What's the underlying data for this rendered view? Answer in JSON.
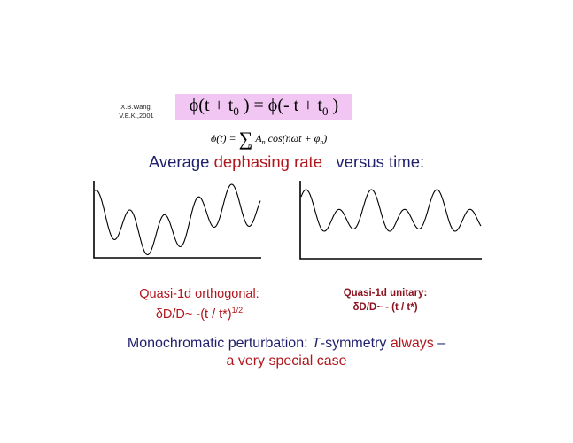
{
  "credit": {
    "line1": "X.B.Wang,",
    "line2": "V.E.K.,2001"
  },
  "equation_main": {
    "lhs": "ϕ(t + t",
    "sub1": "0",
    "mid": " ) = ϕ(- t + t",
    "sub2": "0",
    "rhs": " )"
  },
  "equation_series": {
    "lhs": "ϕ(t) = ",
    "sum": "∑",
    "index": "n",
    "term_a": "A",
    "term_a_sub": "n",
    "term_rest": " cos(nωt + φ",
    "term_phi_sub": "n",
    "term_end": ")"
  },
  "heading": {
    "part1": "Average ",
    "highlight": "dephasing rate",
    "part2": "   versus time:"
  },
  "colors": {
    "navy": "#1f1f6e",
    "red": "#b0161b",
    "eq_box": "#f2c6f2"
  },
  "left_caption": {
    "line1": "Quasi-1d orthogonal:",
    "line2": "δD/D~ -(t / t*)",
    "line2_sup": "1/2"
  },
  "right_caption": {
    "line1": "Quasi-1d unitary:",
    "line2": "δD/D~ - (t / t*)"
  },
  "bottom": {
    "part1": "Monochromatic perturbation: ",
    "italic": "T",
    "part2": "-symmetry ",
    "always": "always",
    "dash": " –",
    "line2": "a very special case"
  }
}
